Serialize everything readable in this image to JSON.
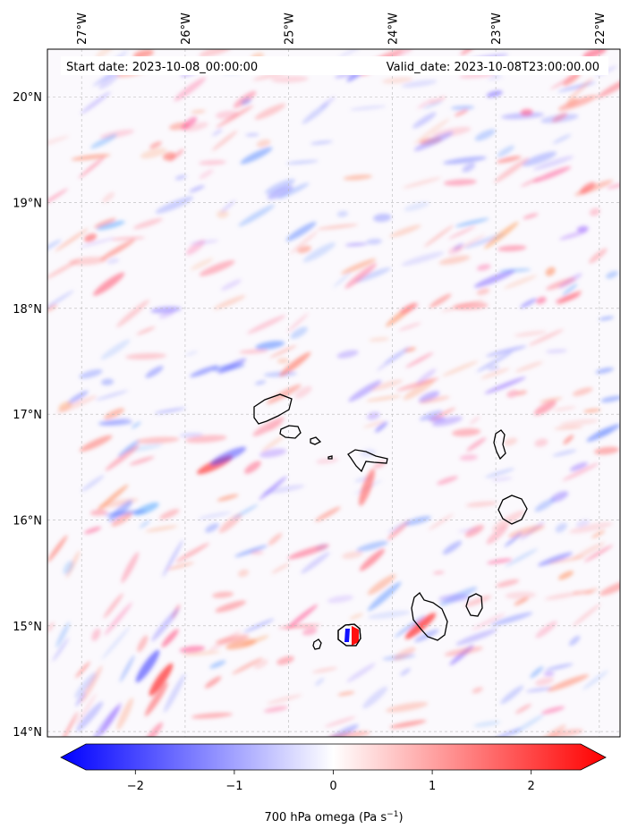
{
  "header": {
    "start_date": "Start date: 2023-10-08_00:00:00",
    "valid_date": "Valid_date: 2023-10-08T23:00:00.00"
  },
  "map": {
    "lon_range": [
      -27.33,
      -21.8
    ],
    "lat_range": [
      13.95,
      20.45
    ],
    "lon_ticks": [
      {
        "value": -27,
        "label": "27°W"
      },
      {
        "value": -26,
        "label": "26°W"
      },
      {
        "value": -25,
        "label": "25°W"
      },
      {
        "value": -24,
        "label": "24°W"
      },
      {
        "value": -23,
        "label": "23°W"
      },
      {
        "value": -22,
        "label": "22°W"
      }
    ],
    "lat_ticks": [
      {
        "value": 20,
        "label": "20°N"
      },
      {
        "value": 19,
        "label": "19°N"
      },
      {
        "value": 18,
        "label": "18°N"
      },
      {
        "value": 17,
        "label": "17°N"
      },
      {
        "value": 16,
        "label": "16°N"
      },
      {
        "value": 15,
        "label": "15°N"
      },
      {
        "value": 14,
        "label": "14°N"
      }
    ],
    "gridlines": true,
    "coastline_color": "#000000"
  },
  "colorbar": {
    "min": -2.5,
    "max": 2.5,
    "extend": "both",
    "cmap": "bwr",
    "ticks": [
      {
        "value": -2,
        "label": "−2"
      },
      {
        "value": -1,
        "label": "−1"
      },
      {
        "value": 0,
        "label": "0"
      },
      {
        "value": 1,
        "label": "1"
      },
      {
        "value": 2,
        "label": "2"
      }
    ],
    "label_prefix": "700 hPa omega (Pa s",
    "label_exp": "−1",
    "label_suffix": ")"
  }
}
